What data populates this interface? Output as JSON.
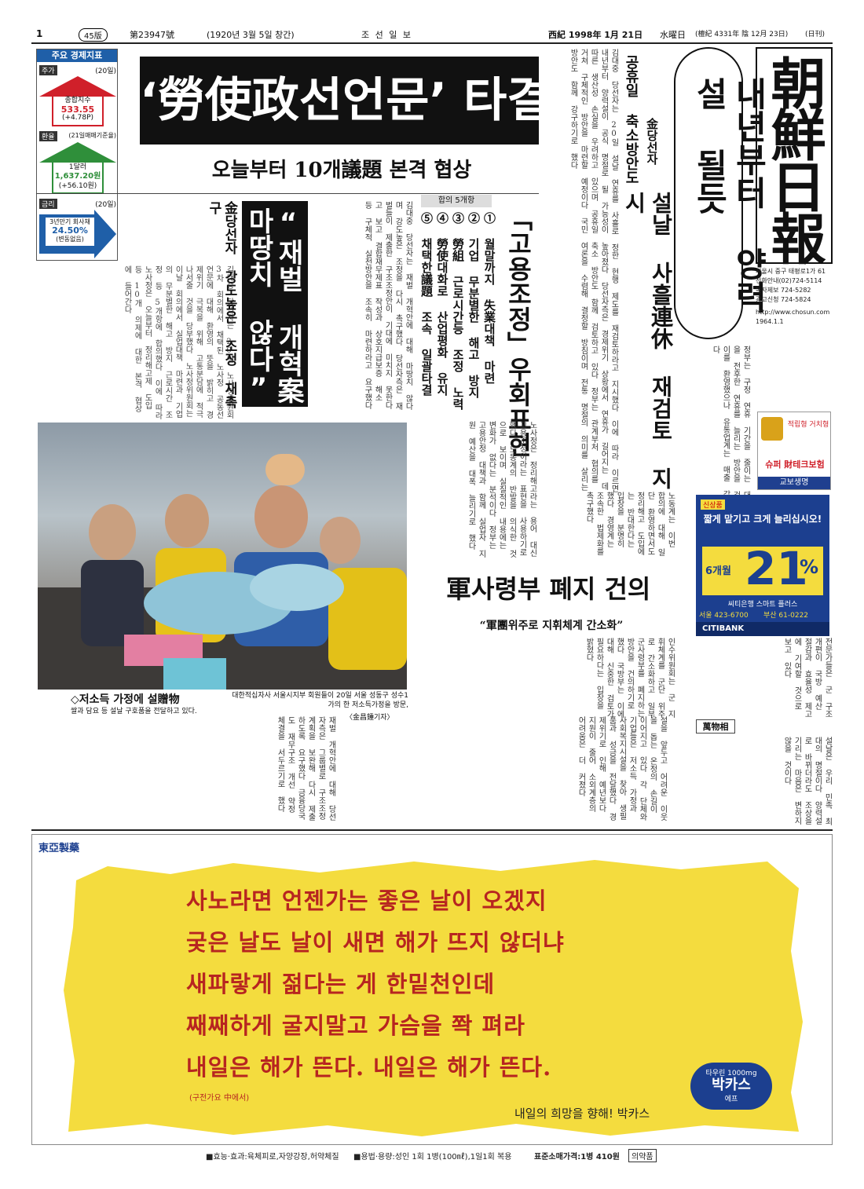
{
  "header": {
    "page": "1",
    "edition": "45版",
    "issue": "第23947號",
    "founded": "(1920년 3월 5일 창간)",
    "masthead_small": "조   선   일   보",
    "date": "西紀 1998年 1月 21日",
    "weekday": "水曜日",
    "lunar": "(檀紀 4331年 陰 12月 23日)",
    "daily": "(日刊)"
  },
  "econ": {
    "title": "주요 경제지표",
    "stock": {
      "label": "주가",
      "date": "(20일)",
      "name": "종합지수",
      "value": "533.55",
      "change": "(+4.78P)"
    },
    "fx": {
      "label": "환율",
      "date": "(21일매매기준율)",
      "name": "1달러",
      "value": "1,637.20원",
      "change": "(+56.10원)"
    },
    "rate": {
      "label": "금리",
      "date": "(20일)",
      "name": "3년만기 회사채",
      "value": "24.50%",
      "change": "(변동없음)"
    }
  },
  "lead": {
    "headline": "‘勞使政선언문’ 타결",
    "sub": "오늘부터 10개議題 본격 협상"
  },
  "right_story": {
    "headline": "내년부터 양력설 될듯",
    "kicker": "金당선자",
    "sub": "설날 사흘連休 재검토 지시",
    "side": "공휴일 축소방안도"
  },
  "chaebol": {
    "headline": "“재벌 개혁案 마땅치 않다”",
    "sub": "金당선자 강도높은 조정 재촉구"
  },
  "agreement": {
    "title": "합의 5개항",
    "items": [
      "① 월말까지 失業대책 마련",
      "② 기업 무분별한 해고 방지",
      "③ 勞組 근로시간등 조정 노력",
      "④ 勞使대화로 산업평화 유지",
      "⑤ 채택한議題 조속 일괄타결"
    ]
  },
  "employment": {
    "headline": "「고용조정」우회표현"
  },
  "military": {
    "headline": "軍사령부 폐지 건의",
    "sub": "“軍團위주로 지휘체계 간소화”"
  },
  "photo": {
    "credit": "대한적십자사 서울시지부 회원들이 20일 서울 성동구 성수1가의 한 저소득가정을 방문,",
    "caption_title": "◇저소득 가정에 설贈物",
    "caption": "쌀과 담요 등 설날 구호품을 전달하고 있다.",
    "photographer": "〈金昌鍾기자〉"
  },
  "column": {
    "title": "萬物相"
  },
  "masthead": {
    "title": "朝鮮日報",
    "address": "서울시 중구 태평로1가 61",
    "phones": [
      "전화안내(02)724-5114",
      "독자제보 724-5282",
      "광고신청 724-5824"
    ],
    "web": "http://www.chosun.com",
    "founded": "1964.1.1"
  },
  "ads": {
    "kyobo": {
      "line1": "적립형 거치형",
      "name": "슈퍼 財테크보험",
      "brand": "교보생명"
    },
    "citibank": {
      "tag": "신상품",
      "headline": "짧게 맡기고 크게 늘리십시오!",
      "months": "6개월",
      "rate": "21",
      "pct": "%",
      "product": "씨티은행 스마트 플러스",
      "phone1": "서울 423-6700",
      "phone2": "부산 61-0222",
      "brand": "CITIBANK"
    },
    "bacchus": {
      "company": "東亞製藥",
      "lines": [
        "사노라면 언젠가는 좋은 날이 오겠지",
        "궂은 날도 날이 새면 해가 뜨지 않더냐",
        "새파랗게 젊다는 게 한밑천인데",
        "째째하게 굴지말고 가슴을 쫙 펴라",
        "내일은 해가 뜬다. 내일은 해가 뜬다."
      ],
      "source": "(구전가요 中에서)",
      "slogan": "내일의 희망을 향해! 박카스",
      "product": "박카스",
      "product_sub": "에프",
      "taurine": "타우린 1000mg",
      "footer": {
        "effects": "■효능·효과:육체피로,자양강장,허약체질",
        "dosage": "■용법·용량:성인 1회 1병(100㎖),1일1회 복용",
        "price": "표준소매가격:1병 410원",
        "class": "의약품"
      }
    }
  },
  "colors": {
    "accent_red": "#d0202a",
    "dark_red": "#9a1c1c",
    "citi_blue": "#1c3f8f",
    "ad_yellow": "#f4dc3e",
    "econ_green": "#2f8f3a",
    "econ_blue": "#1f5fa8"
  }
}
